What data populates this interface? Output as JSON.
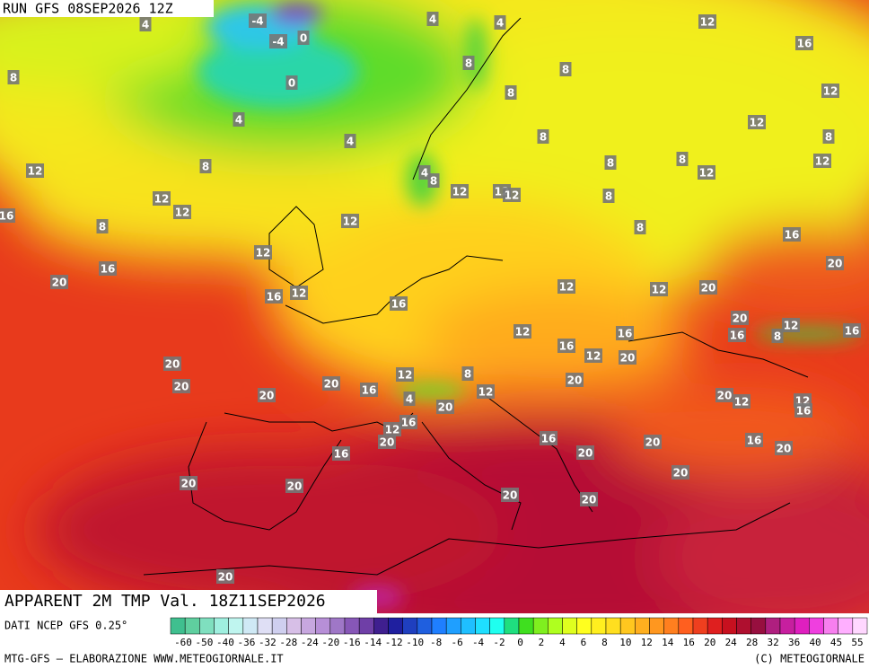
{
  "header": {
    "run": "RUN GFS 08SEP2026 12Z",
    "title": "APPARENT 2M TMP Val. 18Z11SEP2026"
  },
  "footer": {
    "source": "DATI NCEP GFS 0.25°",
    "credit": "MTG-GFS — ELABORAZIONE WWW.METEOGIORNALE.IT",
    "copyright": "(C) METEOGIORNALE"
  },
  "colorbar": {
    "labels": [
      -60,
      -50,
      -40,
      -36,
      -32,
      -28,
      -24,
      -20,
      -16,
      -14,
      -12,
      -10,
      -8,
      -6,
      -4,
      -2,
      0,
      2,
      4,
      6,
      8,
      10,
      12,
      14,
      16,
      20,
      24,
      28,
      32,
      36,
      40,
      45,
      55
    ],
    "colors": [
      "#3fbf8f",
      "#5fcf9f",
      "#7fdfbf",
      "#9fefdf",
      "#bff5ef",
      "#cfe9f5",
      "#dfdff5",
      "#cfcfef",
      "#d7bfe7",
      "#c7a7df",
      "#b78fd7",
      "#9f77c7",
      "#8757b7",
      "#6f3fa7",
      "#3f1f8f",
      "#1f1f9f",
      "#1f3fbf",
      "#1f5fdf",
      "#1f7fff",
      "#1f9fff",
      "#1fbfff",
      "#1fdfff",
      "#1fffef",
      "#1fdf7f",
      "#3fdf1f",
      "#7fef1f",
      "#afff1f",
      "#dfff1f",
      "#ffff1f",
      "#ffef1f",
      "#ffdf1f",
      "#ffc71f",
      "#ffaf1f",
      "#ff971f",
      "#ff7f1f",
      "#ff5f1f",
      "#ef3f1f",
      "#df1f1f",
      "#c7101f",
      "#af0f2f",
      "#970f3f",
      "#af1f7f",
      "#c71f9f",
      "#df1fbf",
      "#ef3fdf",
      "#f77fef",
      "#ffafff",
      "#ffd7ff"
    ]
  },
  "map_labels": [
    4,
    -4,
    4,
    4,
    12,
    -4,
    0,
    16,
    8,
    8,
    8,
    0,
    12,
    8,
    4,
    12,
    8,
    4,
    8,
    8,
    8,
    12,
    12,
    8,
    4,
    8,
    12,
    12,
    12,
    12,
    12,
    12,
    8,
    16,
    12,
    8,
    8,
    16,
    12,
    20,
    16,
    20,
    12,
    12,
    20,
    16,
    12,
    16,
    20,
    12,
    8,
    16,
    16,
    12,
    16,
    16,
    12,
    20,
    20,
    8,
    12,
    20,
    20,
    16,
    20,
    4,
    12,
    20,
    20,
    12,
    12,
    16,
    20,
    16,
    12,
    20,
    16,
    20,
    16,
    20,
    20,
    16,
    20,
    20,
    20,
    20,
    20,
    20
  ]
}
